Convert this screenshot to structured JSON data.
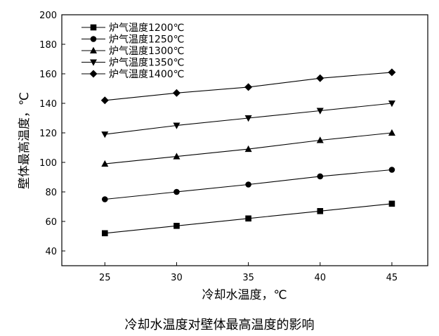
{
  "chart_data": {
    "type": "line",
    "xlabel": "冷却水温度，℃",
    "ylabel": "壁体最高温度，℃",
    "xlim": [
      22,
      47.5
    ],
    "ylim": [
      30,
      200
    ],
    "x_ticks": [
      25,
      30,
      35,
      40,
      45
    ],
    "y_ticks": [
      40,
      60,
      80,
      100,
      120,
      140,
      160,
      180,
      200
    ],
    "legend_position": "top-left",
    "grid": false,
    "x": [
      25,
      30,
      35,
      40,
      45
    ],
    "series": [
      {
        "name": "炉气温度1200℃",
        "marker": "square",
        "values": [
          52,
          57,
          62,
          67,
          72
        ]
      },
      {
        "name": "炉气温度1250℃",
        "marker": "circle",
        "values": [
          75,
          80,
          85,
          90.5,
          95
        ]
      },
      {
        "name": "炉气温度1300℃",
        "marker": "triangle-up",
        "values": [
          99,
          104,
          109,
          115,
          120
        ]
      },
      {
        "name": "炉气温度1350℃",
        "marker": "triangle-down",
        "values": [
          119,
          125,
          130,
          135,
          140
        ]
      },
      {
        "name": "炉气温度1400℃",
        "marker": "diamond",
        "values": [
          142,
          147,
          151,
          157,
          161
        ]
      }
    ]
  },
  "caption": "冷却水温度对壁体最高温度的影响"
}
